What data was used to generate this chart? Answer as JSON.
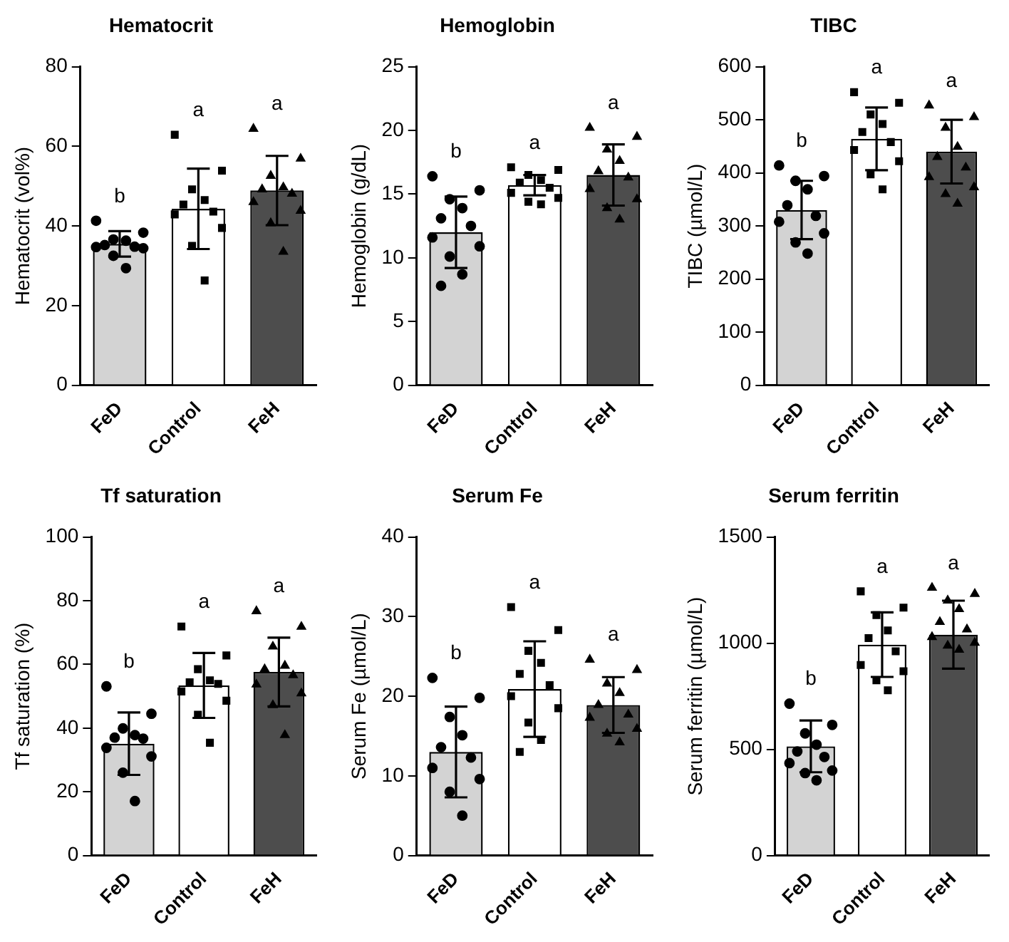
{
  "chart_data": [
    {
      "type": "bar",
      "title": "Hematocrit",
      "ylabel": "Hematocrit (vol%)",
      "categories": [
        "FeD",
        "Control",
        "FeH"
      ],
      "ylim": [
        0,
        80
      ],
      "yticks": [
        0,
        20,
        40,
        60,
        80
      ],
      "series": [
        {
          "type": "bar",
          "colors": [
            "#d3d3d3",
            "#ffffff",
            "#4d4d4d"
          ],
          "values": [
            35.5,
            44.3,
            48.9
          ],
          "errors": [
            3.2,
            10.1,
            8.7
          ]
        },
        {
          "type": "scatter",
          "marker": "circle",
          "color": "#000000",
          "x": [
            "FeD",
            "FeD",
            "FeD",
            "FeD",
            "FeD",
            "FeD",
            "FeD",
            "FeD",
            "FeD",
            "FeD"
          ],
          "values": [
            41.3,
            38.3,
            36.6,
            36.3,
            35.2,
            34.8,
            34.7,
            34.4,
            32.5,
            29.4
          ]
        },
        {
          "type": "scatter",
          "marker": "square",
          "color": "#000000",
          "x": [
            "Control",
            "Control",
            "Control",
            "Control",
            "Control",
            "Control",
            "Control",
            "Control",
            "Control",
            "Control"
          ],
          "values": [
            62.9,
            53.9,
            49.2,
            46.5,
            45.4,
            43.6,
            42.9,
            39.5,
            35,
            26.3
          ]
        },
        {
          "type": "scatter",
          "marker": "triangle",
          "color": "#000000",
          "x": [
            "FeH",
            "FeH",
            "FeH",
            "FeH",
            "FeH",
            "FeH",
            "FeH",
            "FeH",
            "FeH",
            "FeH"
          ],
          "values": [
            64.4,
            56.9,
            52.6,
            49.7,
            49.2,
            48.1,
            46,
            43.8,
            40.7,
            33.5
          ]
        }
      ],
      "annotations": [
        "b",
        "a",
        "a"
      ]
    },
    {
      "type": "bar",
      "title": "Hemoglobin",
      "ylabel": "Hemoglobin (g/dL)",
      "categories": [
        "FeD",
        "Control",
        "FeH"
      ],
      "ylim": [
        0,
        25
      ],
      "yticks": [
        0,
        5,
        10,
        15,
        20,
        25
      ],
      "series": [
        {
          "type": "bar",
          "colors": [
            "#d3d3d3",
            "#ffffff",
            "#4d4d4d"
          ],
          "values": [
            12,
            15.7,
            16.5
          ],
          "errors": [
            2.8,
            0.8,
            2.4
          ]
        },
        {
          "type": "scatter",
          "marker": "circle",
          "color": "#000000",
          "x": [
            "FeD",
            "FeD",
            "FeD",
            "FeD",
            "FeD",
            "FeD",
            "FeD",
            "FeD",
            "FeD",
            "FeD",
            "FeD"
          ],
          "values": [
            16.4,
            15.3,
            14.6,
            13.9,
            13.1,
            12.5,
            11.6,
            10.9,
            10.1,
            8.7,
            7.8
          ]
        },
        {
          "type": "scatter",
          "marker": "square",
          "color": "#000000",
          "x": [
            "Control",
            "Control",
            "Control",
            "Control",
            "Control",
            "Control",
            "Control",
            "Control",
            "Control",
            "Control"
          ],
          "values": [
            17.1,
            16.9,
            16.5,
            16.1,
            15.9,
            15.5,
            15.1,
            14.7,
            14.4,
            14.2
          ]
        },
        {
          "type": "scatter",
          "marker": "triangle",
          "color": "#000000",
          "x": [
            "FeH",
            "FeH",
            "FeH",
            "FeH",
            "FeH",
            "FeH",
            "FeH",
            "FeH",
            "FeH",
            "FeH"
          ],
          "values": [
            20.2,
            19.5,
            18.5,
            17.6,
            16.8,
            16.3,
            15.4,
            14.6,
            13.9,
            13
          ]
        }
      ],
      "annotations": [
        "b",
        "a",
        "a"
      ]
    },
    {
      "type": "bar",
      "title": "TIBC",
      "ylabel": "TIBC (µmol/L)",
      "categories": [
        "FeD",
        "Control",
        "FeH"
      ],
      "ylim": [
        0,
        600
      ],
      "yticks": [
        0,
        100,
        200,
        300,
        400,
        500,
        600
      ],
      "series": [
        {
          "type": "bar",
          "colors": [
            "#d3d3d3",
            "#ffffff",
            "#4d4d4d"
          ],
          "values": [
            330,
            464,
            440
          ],
          "errors": [
            55,
            59,
            60
          ]
        },
        {
          "type": "scatter",
          "marker": "circle",
          "color": "#000000",
          "x": [
            "FeD",
            "FeD",
            "FeD",
            "FeD",
            "FeD",
            "FeD",
            "FeD",
            "FeD",
            "FeD",
            "FeD"
          ],
          "values": [
            414,
            394,
            385,
            369,
            339,
            319,
            308,
            286,
            269,
            248
          ]
        },
        {
          "type": "scatter",
          "marker": "square",
          "color": "#000000",
          "x": [
            "Control",
            "Control",
            "Control",
            "Control",
            "Control",
            "Control",
            "Control",
            "Control",
            "Control",
            "Control"
          ],
          "values": [
            552,
            532,
            510,
            492,
            477,
            458,
            443,
            422,
            397,
            369
          ]
        },
        {
          "type": "scatter",
          "marker": "triangle",
          "color": "#000000",
          "x": [
            "FeH",
            "FeH",
            "FeH",
            "FeH",
            "FeH",
            "FeH",
            "FeH",
            "FeH",
            "FeH",
            "FeH"
          ],
          "values": [
            527,
            505,
            485,
            449,
            430,
            410,
            392,
            373,
            360,
            342
          ]
        }
      ],
      "annotations": [
        "b",
        "a",
        "a"
      ]
    },
    {
      "type": "bar",
      "title": "Tf saturation",
      "ylabel": "Tf saturation (%)",
      "categories": [
        "FeD",
        "Control",
        "FeH"
      ],
      "ylim": [
        0,
        100
      ],
      "yticks": [
        0,
        20,
        40,
        60,
        80,
        100
      ],
      "series": [
        {
          "type": "bar",
          "colors": [
            "#d3d3d3",
            "#ffffff",
            "#4d4d4d"
          ],
          "values": [
            35.1,
            53.4,
            57.6
          ],
          "errors": [
            9.8,
            10.2,
            10.8
          ]
        },
        {
          "type": "scatter",
          "marker": "circle",
          "color": "#000000",
          "x": [
            "FeD",
            "FeD",
            "FeD",
            "FeD",
            "FeD",
            "FeD",
            "FeD",
            "FeD",
            "FeD",
            "FeD"
          ],
          "values": [
            53.1,
            44.5,
            39.9,
            37.8,
            37,
            36.7,
            33.8,
            31.1,
            26,
            17.1
          ]
        },
        {
          "type": "scatter",
          "marker": "square",
          "color": "#000000",
          "x": [
            "Control",
            "Control",
            "Control",
            "Control",
            "Control",
            "Control",
            "Control",
            "Control",
            "Control",
            "Control"
          ],
          "values": [
            71.9,
            62.8,
            58.5,
            55,
            54.4,
            53.9,
            51.5,
            48.6,
            44.2,
            35.4
          ]
        },
        {
          "type": "scatter",
          "marker": "triangle",
          "color": "#000000",
          "x": [
            "FeH",
            "FeH",
            "FeH",
            "FeH",
            "FeH",
            "FeH",
            "FeH",
            "FeH",
            "FeH",
            "FeH"
          ],
          "values": [
            76.7,
            71.8,
            65.6,
            59.6,
            58.5,
            56.6,
            53.7,
            50.9,
            47.2,
            37.8
          ]
        }
      ],
      "annotations": [
        "b",
        "a",
        "a"
      ]
    },
    {
      "type": "bar",
      "title": "Serum Fe",
      "ylabel": "Serum Fe (µmol/L)",
      "categories": [
        "FeD",
        "Control",
        "FeH"
      ],
      "ylim": [
        0,
        40
      ],
      "yticks": [
        0,
        10,
        20,
        30,
        40
      ],
      "series": [
        {
          "type": "bar",
          "colors": [
            "#d3d3d3",
            "#ffffff",
            "#4d4d4d"
          ],
          "values": [
            13,
            20.9,
            18.9
          ],
          "errors": [
            5.7,
            6,
            3.5
          ]
        },
        {
          "type": "scatter",
          "marker": "circle",
          "color": "#000000",
          "x": [
            "FeD",
            "FeD",
            "FeD",
            "FeD",
            "FeD",
            "FeD",
            "FeD",
            "FeD",
            "FeD",
            "FeD"
          ],
          "values": [
            22.3,
            19.8,
            17.4,
            15.1,
            13.6,
            12.3,
            11,
            9.6,
            8,
            5
          ]
        },
        {
          "type": "scatter",
          "marker": "square",
          "color": "#000000",
          "x": [
            "Control",
            "Control",
            "Control",
            "Control",
            "Control",
            "Control",
            "Control",
            "Control",
            "Control",
            "Control",
            "Control"
          ],
          "values": [
            31.2,
            28.3,
            25.7,
            24.2,
            22.8,
            21.4,
            20,
            18.5,
            16.7,
            14.5,
            13
          ]
        },
        {
          "type": "scatter",
          "marker": "triangle",
          "color": "#000000",
          "x": [
            "FeH",
            "FeH",
            "FeH",
            "FeH",
            "FeH",
            "FeH",
            "FeH",
            "FeH",
            "FeH",
            "FeH"
          ],
          "values": [
            24.6,
            23.3,
            21.6,
            20.4,
            18.9,
            17.7,
            17.3,
            15.9,
            15.3,
            14.2
          ]
        }
      ],
      "annotations": [
        "b",
        "a",
        "a"
      ]
    },
    {
      "type": "bar",
      "title": "Serum ferritin",
      "ylabel": "Serum ferritin (µmol/L)",
      "categories": [
        "FeD",
        "Control",
        "FeH"
      ],
      "ylim": [
        0,
        1500
      ],
      "yticks": [
        0,
        500,
        1000,
        1500
      ],
      "series": [
        {
          "type": "bar",
          "colors": [
            "#d3d3d3",
            "#ffffff",
            "#4d4d4d"
          ],
          "values": [
            514,
            993,
            1040
          ],
          "errors": [
            122,
            152,
            160
          ]
        },
        {
          "type": "scatter",
          "marker": "circle",
          "color": "#000000",
          "x": [
            "FeD",
            "FeD",
            "FeD",
            "FeD",
            "FeD",
            "FeD",
            "FeD",
            "FeD",
            "FeD",
            "FeD"
          ],
          "values": [
            715,
            615,
            575,
            522,
            490,
            464,
            435,
            400,
            388,
            354
          ]
        },
        {
          "type": "scatter",
          "marker": "square",
          "color": "#000000",
          "x": [
            "Control",
            "Control",
            "Control",
            "Control",
            "Control",
            "Control",
            "Control",
            "Control",
            "Control",
            "Control"
          ],
          "values": [
            1244,
            1167,
            1132,
            1060,
            1024,
            962,
            897,
            868,
            825,
            778
          ]
        },
        {
          "type": "scatter",
          "marker": "triangle",
          "color": "#000000",
          "x": [
            "FeH",
            "FeH",
            "FeH",
            "FeH",
            "FeH",
            "FeH",
            "FeH",
            "FeH",
            "FeH",
            "FeH"
          ],
          "values": [
            1261,
            1232,
            1201,
            1160,
            1100,
            1065,
            1029,
            1002,
            988,
            969
          ]
        }
      ],
      "annotations": [
        "b",
        "a",
        "a"
      ]
    }
  ]
}
